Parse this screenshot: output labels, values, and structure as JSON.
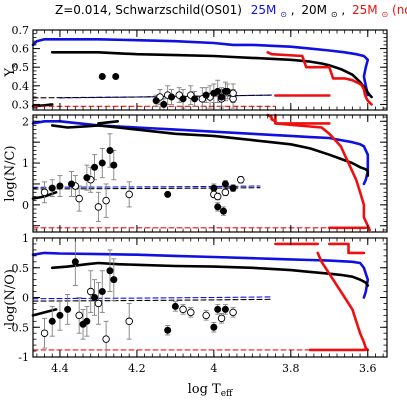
{
  "title": {
    "main": "Z=0.014, Schwarzschild(OS01)",
    "mass_blue": "25M",
    "mass_black": "20M",
    "mass_red": "25M",
    "sun_symbol": "⊙",
    "norot_label": "(norot)",
    "comma": ","
  },
  "colors": {
    "blue": "#1010e0",
    "black": "#000000",
    "red": "#ee1010",
    "grey": "#808080"
  },
  "chart_data": [
    {
      "type": "line",
      "panel": "top",
      "ylabel": "Y",
      "ylabel_sub": "s",
      "xlim": [
        4.47,
        3.55
      ],
      "ylim": [
        0.27,
        0.7
      ],
      "yticks": [
        0.3,
        0.4,
        0.5,
        0.6,
        0.7
      ],
      "ytick_labels": [
        "0.3",
        "0.4",
        "0.5",
        "0.6",
        "0.7"
      ],
      "series": [
        {
          "color": "blue",
          "dash": false,
          "x": [
            4.47,
            4.46,
            4.44,
            4.4,
            4.3,
            4.2,
            4.1,
            4.0,
            3.95,
            3.9,
            3.85,
            3.8,
            3.75,
            3.7,
            3.66,
            3.63,
            3.61,
            3.6,
            3.605,
            3.61,
            3.605,
            3.6
          ],
          "y": [
            0.62,
            0.64,
            0.65,
            0.65,
            0.65,
            0.645,
            0.64,
            0.63,
            0.62,
            0.62,
            0.615,
            0.61,
            0.6,
            0.59,
            0.58,
            0.57,
            0.56,
            0.54,
            0.5,
            0.45,
            0.4,
            0.35
          ]
        },
        {
          "color": "black",
          "dash": false,
          "x": [
            4.42,
            4.4,
            4.35,
            4.3,
            4.25,
            4.2,
            4.1,
            4.0,
            3.95,
            3.9,
            3.85,
            3.8,
            3.75,
            3.72,
            3.7,
            3.67,
            3.64,
            3.62,
            3.605,
            3.595,
            3.59
          ],
          "y": [
            0.58,
            0.58,
            0.58,
            0.58,
            0.575,
            0.57,
            0.565,
            0.56,
            0.555,
            0.55,
            0.545,
            0.54,
            0.53,
            0.52,
            0.51,
            0.49,
            0.46,
            0.42,
            0.38,
            0.35,
            0.34
          ]
        },
        {
          "color": "black",
          "dash": false,
          "x": [
            4.47,
            4.44,
            4.42
          ],
          "y": [
            0.29,
            0.295,
            0.3
          ]
        },
        {
          "color": "red",
          "dash": false,
          "x": [
            3.86,
            3.85,
            3.77,
            3.76,
            3.7,
            3.69,
            3.66,
            3.64,
            3.63,
            3.62,
            3.615,
            3.61,
            3.608,
            3.605,
            3.6,
            3.59
          ],
          "y": [
            0.58,
            0.57,
            0.56,
            0.5,
            0.5,
            0.44,
            0.44,
            0.43,
            0.42,
            0.41,
            0.4,
            0.38,
            0.36,
            0.34,
            0.32,
            0.3
          ]
        },
        {
          "color": "red",
          "dash": false,
          "x": [
            3.84,
            3.7
          ],
          "y": [
            0.348,
            0.348
          ]
        },
        {
          "color": "red",
          "dash": true,
          "x": [
            4.47,
            3.84
          ],
          "y": [
            0.29,
            0.29
          ]
        },
        {
          "color": "blue",
          "dash": true,
          "x": [
            4.4,
            4.2,
            4.0,
            3.85
          ],
          "y": [
            0.335,
            0.34,
            0.345,
            0.35
          ]
        },
        {
          "color": "black",
          "dash": true,
          "x": [
            4.47,
            4.2,
            4.0,
            3.85
          ],
          "y": [
            0.335,
            0.34,
            0.345,
            0.35
          ]
        }
      ],
      "points_filled": [
        {
          "x": 4.29,
          "y": 0.45,
          "err": 0
        },
        {
          "x": 4.255,
          "y": 0.45,
          "err": 0
        },
        {
          "x": 4.15,
          "y": 0.32,
          "err": 0.03
        },
        {
          "x": 4.13,
          "y": 0.3,
          "err": 0.03
        },
        {
          "x": 4.11,
          "y": 0.34,
          "err": 0.04
        },
        {
          "x": 4.08,
          "y": 0.33,
          "err": 0.05
        },
        {
          "x": 4.05,
          "y": 0.33,
          "err": 0.04
        },
        {
          "x": 4.02,
          "y": 0.35,
          "err": 0.04
        },
        {
          "x": 4.0,
          "y": 0.36,
          "err": 0.05
        },
        {
          "x": 3.99,
          "y": 0.37,
          "err": 0.06
        },
        {
          "x": 3.98,
          "y": 0.34,
          "err": 0.05
        },
        {
          "x": 3.97,
          "y": 0.37,
          "err": 0.05
        },
        {
          "x": 3.965,
          "y": 0.37,
          "err": 0.04
        }
      ],
      "points_open": [
        {
          "x": 4.14,
          "y": 0.34,
          "err": 0.04
        },
        {
          "x": 4.12,
          "y": 0.35,
          "err": 0.05
        },
        {
          "x": 4.09,
          "y": 0.35,
          "err": 0.04
        },
        {
          "x": 4.06,
          "y": 0.35,
          "err": 0.05
        },
        {
          "x": 4.03,
          "y": 0.33,
          "err": 0.06
        },
        {
          "x": 4.01,
          "y": 0.34,
          "err": 0.06
        },
        {
          "x": 3.98,
          "y": 0.33,
          "err": 0.05
        },
        {
          "x": 3.95,
          "y": 0.33,
          "err": 0.05
        },
        {
          "x": 3.95,
          "y": 0.36,
          "err": 0.05
        }
      ]
    },
    {
      "type": "line",
      "panel": "middle",
      "ylabel": "log(N/C)",
      "xlim": [
        4.47,
        3.55
      ],
      "ylim": [
        -0.65,
        2.15
      ],
      "yticks": [
        -0.5,
        0,
        0.5,
        1,
        1.5,
        2
      ],
      "ytick_labels": [
        "",
        "0",
        "",
        "1",
        "",
        "2"
      ],
      "series": [
        {
          "color": "blue",
          "dash": false,
          "x": [
            4.47,
            4.44,
            4.4,
            4.3,
            4.2,
            4.1,
            4.0,
            3.9,
            3.8,
            3.75,
            3.7,
            3.67,
            3.64,
            3.62,
            3.61,
            3.6,
            3.6,
            3.605,
            3.61
          ],
          "y": [
            1.95,
            2.0,
            2.0,
            1.9,
            1.85,
            1.8,
            1.75,
            1.7,
            1.65,
            1.62,
            1.6,
            1.55,
            1.5,
            1.45,
            1.4,
            1.2,
            0.8,
            0.6,
            0.5
          ]
        },
        {
          "color": "black",
          "dash": false,
          "x": [
            4.42,
            4.38,
            4.33,
            4.3,
            4.25,
            4.2,
            4.1,
            4.0,
            3.9,
            3.8,
            3.75,
            3.7,
            3.67,
            3.64,
            3.62,
            3.605,
            3.6,
            3.6
          ],
          "y": [
            1.9,
            1.85,
            1.88,
            1.9,
            1.85,
            1.8,
            1.7,
            1.65,
            1.55,
            1.45,
            1.35,
            1.2,
            1.1,
            1.0,
            0.9,
            0.85,
            0.8,
            0.7
          ]
        },
        {
          "color": "black",
          "dash": false,
          "x": [
            4.47,
            4.44,
            4.41
          ],
          "y": [
            0.15,
            0.2,
            0.3
          ]
        },
        {
          "color": "black",
          "dash": false,
          "x": [
            4.3,
            4.25
          ],
          "y": [
            1.95,
            2.0
          ]
        },
        {
          "color": "red",
          "dash": false,
          "x": [
            3.86,
            3.85,
            3.85,
            3.84,
            3.84,
            3.72,
            3.7,
            3.67,
            3.65,
            3.63,
            3.62,
            3.61,
            3.61,
            3.6,
            3.595
          ],
          "y": [
            2.15,
            2.1,
            2.05,
            2.0,
            1.95,
            1.85,
            1.7,
            1.4,
            1.0,
            0.6,
            0.3,
            0.0,
            -0.3,
            -0.5,
            -0.6
          ]
        },
        {
          "color": "red",
          "dash": false,
          "x": [
            3.84,
            3.84,
            3.7
          ],
          "y": [
            2.15,
            1.95,
            1.95
          ]
        },
        {
          "color": "red",
          "dash": false,
          "x": [
            3.7,
            3.605
          ],
          "y": [
            -0.55,
            -0.55
          ]
        },
        {
          "color": "red",
          "dash": true,
          "x": [
            4.47,
            3.7
          ],
          "y": [
            -0.55,
            -0.55
          ]
        },
        {
          "color": "blue",
          "dash": true,
          "x": [
            4.47,
            4.2,
            4.0,
            3.88
          ],
          "y": [
            0.42,
            0.43,
            0.44,
            0.45
          ]
        },
        {
          "color": "black",
          "dash": true,
          "x": [
            4.47,
            4.2,
            4.0,
            3.88
          ],
          "y": [
            0.38,
            0.39,
            0.4,
            0.41
          ]
        }
      ],
      "points_filled": [
        {
          "x": 4.42,
          "y": 0.4,
          "err": 0.2
        },
        {
          "x": 4.4,
          "y": 0.45,
          "err": 0.25
        },
        {
          "x": 4.37,
          "y": 0.5,
          "err": 0.3
        },
        {
          "x": 4.33,
          "y": 0.65,
          "err": 0.3
        },
        {
          "x": 4.31,
          "y": 0.9,
          "err": 0.3
        },
        {
          "x": 4.29,
          "y": 1.0,
          "err": 0.35
        },
        {
          "x": 4.27,
          "y": 1.3,
          "err": 0.4
        },
        {
          "x": 4.26,
          "y": 0.95,
          "err": 0.35
        },
        {
          "x": 4.12,
          "y": 0.25,
          "err": 0
        },
        {
          "x": 4.0,
          "y": 0.4,
          "err": 0.1
        },
        {
          "x": 3.99,
          "y": -0.05,
          "err": 0.1
        },
        {
          "x": 3.975,
          "y": -0.15,
          "err": 0.1
        },
        {
          "x": 3.97,
          "y": 0.5,
          "err": 0.08
        },
        {
          "x": 3.95,
          "y": 0.4,
          "err": 0.08
        }
      ],
      "points_open": [
        {
          "x": 4.44,
          "y": 0.3,
          "err": 0.25
        },
        {
          "x": 4.36,
          "y": 0.45,
          "err": 0.25
        },
        {
          "x": 4.35,
          "y": 0.15,
          "err": 0.3
        },
        {
          "x": 4.32,
          "y": 0.6,
          "err": 0.3
        },
        {
          "x": 4.3,
          "y": -0.05,
          "err": 0.35
        },
        {
          "x": 4.28,
          "y": 0.1,
          "err": 0.4
        },
        {
          "x": 4.22,
          "y": 0.25,
          "err": 0.3
        },
        {
          "x": 4.0,
          "y": 0.25,
          "err": 0.08
        },
        {
          "x": 3.99,
          "y": 0.2,
          "err": 0.08
        },
        {
          "x": 3.97,
          "y": 0.3,
          "err": 0.08
        },
        {
          "x": 3.93,
          "y": 0.6,
          "err": 0.08
        }
      ]
    },
    {
      "type": "line",
      "panel": "bottom",
      "ylabel": "log(N/O)",
      "xlabel": "log T",
      "xlabel_sub": "eff",
      "xlim": [
        4.47,
        3.55
      ],
      "ylim": [
        -1.0,
        1.0
      ],
      "yticks": [
        -1,
        -0.5,
        0,
        0.5,
        1
      ],
      "ytick_labels": [
        "-1",
        "-0.5",
        "0",
        "0.5",
        "1"
      ],
      "xticks": [
        4.4,
        4.2,
        4.0,
        3.8,
        3.6
      ],
      "xtick_labels": [
        "4.4",
        "4.2",
        "4",
        "3.8",
        "3.6"
      ],
      "series": [
        {
          "color": "blue",
          "dash": false,
          "x": [
            4.47,
            4.44,
            4.4,
            4.3,
            4.2,
            4.1,
            4.0,
            3.9,
            3.85,
            3.8,
            3.75,
            3.7,
            3.67,
            3.64,
            3.62,
            3.61,
            3.6,
            3.605,
            3.61
          ],
          "y": [
            0.72,
            0.75,
            0.74,
            0.73,
            0.72,
            0.7,
            0.68,
            0.66,
            0.65,
            0.64,
            0.63,
            0.62,
            0.61,
            0.6,
            0.58,
            0.5,
            0.3,
            0.1,
            0.0
          ]
        },
        {
          "color": "black",
          "dash": false,
          "x": [
            4.42,
            4.38,
            4.33,
            4.3,
            4.25,
            4.2,
            4.1,
            4.0,
            3.9,
            3.85,
            3.8,
            3.75,
            3.7,
            3.67,
            3.64,
            3.62,
            3.605,
            3.6
          ],
          "y": [
            0.5,
            0.52,
            0.56,
            0.58,
            0.56,
            0.55,
            0.53,
            0.52,
            0.5,
            0.48,
            0.46,
            0.43,
            0.4,
            0.38,
            0.35,
            0.3,
            0.25,
            0.2
          ]
        },
        {
          "color": "black",
          "dash": false,
          "x": [
            4.47,
            4.44,
            4.41
          ],
          "y": [
            -0.3,
            -0.25,
            -0.2
          ]
        },
        {
          "color": "red",
          "dash": false,
          "x": [
            3.84,
            3.73
          ],
          "y": [
            0.9,
            0.9
          ]
        },
        {
          "color": "red",
          "dash": false,
          "x": [
            3.7,
            3.65,
            3.65,
            3.61
          ],
          "y": [
            0.9,
            0.9,
            0.75,
            0.75
          ]
        },
        {
          "color": "red",
          "dash": false,
          "x": [
            3.73,
            3.72,
            3.7,
            3.68,
            3.66,
            3.64,
            3.63,
            3.62,
            3.61,
            3.605,
            3.6
          ],
          "y": [
            0.75,
            0.6,
            0.4,
            0.2,
            0.0,
            -0.2,
            -0.4,
            -0.6,
            -0.75,
            -0.85,
            -0.88
          ]
        },
        {
          "color": "red",
          "dash": true,
          "x": [
            4.47,
            3.75
          ],
          "y": [
            -0.88,
            -0.88
          ]
        },
        {
          "color": "red",
          "dash": false,
          "x": [
            3.75,
            3.605
          ],
          "y": [
            -0.88,
            -0.88
          ]
        },
        {
          "color": "blue",
          "dash": true,
          "x": [
            4.47,
            4.2,
            4.0,
            3.85
          ],
          "y": [
            -0.02,
            -0.01,
            0.0,
            0.01
          ]
        },
        {
          "color": "black",
          "dash": true,
          "x": [
            4.47,
            4.2,
            4.0,
            3.85
          ],
          "y": [
            -0.06,
            -0.05,
            -0.04,
            -0.03
          ]
        }
      ],
      "points_filled": [
        {
          "x": 4.42,
          "y": -0.4,
          "err": 0.25
        },
        {
          "x": 4.4,
          "y": -0.3,
          "err": 0.25
        },
        {
          "x": 4.38,
          "y": -0.2,
          "err": 0.25
        },
        {
          "x": 4.36,
          "y": 0.6,
          "err": 0.4
        },
        {
          "x": 4.34,
          "y": -0.45,
          "err": 0.25
        },
        {
          "x": 4.33,
          "y": -0.4,
          "err": 0.25
        },
        {
          "x": 4.31,
          "y": 0.0,
          "err": 0.3
        },
        {
          "x": 4.29,
          "y": 0.1,
          "err": 0.35
        },
        {
          "x": 4.27,
          "y": 0.45,
          "err": 0.35
        },
        {
          "x": 4.26,
          "y": 0.3,
          "err": 0.35
        },
        {
          "x": 4.12,
          "y": -0.55,
          "err": 0.08
        },
        {
          "x": 4.1,
          "y": -0.15,
          "err": 0.08
        },
        {
          "x": 4.0,
          "y": -0.5,
          "err": 0.08
        },
        {
          "x": 3.99,
          "y": -0.2,
          "err": 0.08
        },
        {
          "x": 3.97,
          "y": -0.2,
          "err": 0.08
        }
      ],
      "points_open": [
        {
          "x": 4.44,
          "y": -0.6,
          "err": 0.25
        },
        {
          "x": 4.35,
          "y": -0.3,
          "err": 0.3
        },
        {
          "x": 4.32,
          "y": 0.1,
          "err": 0.35
        },
        {
          "x": 4.3,
          "y": -0.1,
          "err": 0.35
        },
        {
          "x": 4.28,
          "y": -0.7,
          "err": 0.3
        },
        {
          "x": 4.22,
          "y": -0.4,
          "err": 0.3
        },
        {
          "x": 4.08,
          "y": -0.2,
          "err": 0.08
        },
        {
          "x": 4.06,
          "y": -0.25,
          "err": 0.08
        },
        {
          "x": 4.02,
          "y": -0.3,
          "err": 0.08
        },
        {
          "x": 3.98,
          "y": -0.35,
          "err": 0.08
        },
        {
          "x": 3.95,
          "y": -0.25,
          "err": 0.08
        }
      ]
    }
  ]
}
